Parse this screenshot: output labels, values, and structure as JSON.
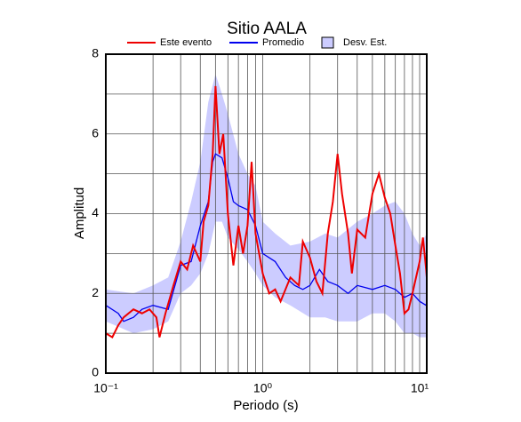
{
  "chart_data": {
    "type": "line",
    "title": "Sitio AALA",
    "x_label": "Periodo (s)",
    "y_label": "Amplitud",
    "xscale": "log",
    "xlim": [
      0.1,
      11.1
    ],
    "ylim": [
      0,
      8
    ],
    "xticks": [
      {
        "value": 0.1,
        "label": "10⁻¹"
      },
      {
        "value": 1,
        "label": "10⁰"
      },
      {
        "value": 10,
        "label": "10¹"
      }
    ],
    "xminorticks": [
      0.2,
      0.3,
      0.4,
      0.5,
      0.6,
      0.7,
      0.8,
      0.9,
      2,
      3,
      4,
      5,
      6,
      7,
      8,
      9
    ],
    "yticks": [
      0,
      2,
      4,
      6,
      8
    ],
    "yminorticks": [
      1,
      3,
      5,
      7
    ],
    "grid": true,
    "series": [
      {
        "name": "Este evento",
        "color": "#ee0000",
        "x": [
          0.1,
          0.11,
          0.12,
          0.13,
          0.15,
          0.17,
          0.19,
          0.21,
          0.22,
          0.24,
          0.27,
          0.3,
          0.33,
          0.36,
          0.4,
          0.42,
          0.45,
          0.48,
          0.5,
          0.53,
          0.56,
          0.6,
          0.65,
          0.7,
          0.75,
          0.8,
          0.85,
          0.9,
          1.0,
          1.1,
          1.2,
          1.3,
          1.5,
          1.7,
          1.8,
          2.0,
          2.2,
          2.4,
          2.6,
          2.8,
          3.0,
          3.2,
          3.5,
          3.7,
          4.0,
          4.5,
          5.0,
          5.5,
          6.0,
          6.5,
          7,
          7.5,
          8,
          8.5,
          9,
          10,
          10.5,
          11,
          11.1
        ],
        "values": [
          1.0,
          0.9,
          1.2,
          1.4,
          1.6,
          1.5,
          1.6,
          1.4,
          0.9,
          1.5,
          2.2,
          2.8,
          2.6,
          3.2,
          2.8,
          3.8,
          4.2,
          5.5,
          7.2,
          5.5,
          6.0,
          4.0,
          2.7,
          3.7,
          3.0,
          3.7,
          5.3,
          3.5,
          2.5,
          2.0,
          2.1,
          1.8,
          2.4,
          2.2,
          3.3,
          2.9,
          2.3,
          2.0,
          3.5,
          4.3,
          5.5,
          4.5,
          3.5,
          2.5,
          3.6,
          3.4,
          4.5,
          5.0,
          4.4,
          4.0,
          3.2,
          2.5,
          1.5,
          1.6,
          2.0,
          2.8,
          3.4,
          2.6,
          2.4
        ]
      },
      {
        "name": "Promedio",
        "color": "#0000ee",
        "x": [
          0.1,
          0.12,
          0.13,
          0.15,
          0.17,
          0.2,
          0.25,
          0.3,
          0.35,
          0.4,
          0.45,
          0.48,
          0.5,
          0.55,
          0.6,
          0.65,
          0.7,
          0.8,
          0.9,
          1.0,
          1.2,
          1.4,
          1.6,
          1.8,
          2.0,
          2.3,
          2.6,
          3.0,
          3.5,
          4.0,
          5.0,
          6.0,
          7,
          8,
          9,
          10,
          11,
          11.1
        ],
        "values": [
          1.7,
          1.5,
          1.3,
          1.4,
          1.6,
          1.7,
          1.6,
          2.7,
          2.8,
          3.7,
          4.3,
          5.3,
          5.5,
          5.4,
          4.9,
          4.3,
          4.2,
          4.1,
          3.7,
          3.0,
          2.8,
          2.4,
          2.2,
          2.1,
          2.2,
          2.6,
          2.3,
          2.2,
          2.0,
          2.2,
          2.1,
          2.2,
          2.1,
          1.9,
          2.0,
          1.8,
          1.7,
          1.8
        ]
      },
      {
        "name": "Desv. Est.",
        "color": "#ccccff",
        "x": [
          0.1,
          0.15,
          0.2,
          0.25,
          0.3,
          0.35,
          0.4,
          0.45,
          0.5,
          0.55,
          0.6,
          0.7,
          0.8,
          0.9,
          1.0,
          1.2,
          1.5,
          2.0,
          2.5,
          3.0,
          4.0,
          5.0,
          6.0,
          7,
          8,
          9,
          10,
          11.1
        ],
        "upper": [
          2.1,
          2.0,
          2.2,
          2.4,
          3.3,
          4.3,
          5.3,
          6.8,
          7.5,
          7.0,
          6.5,
          5.5,
          5.0,
          4.7,
          3.8,
          3.5,
          3.2,
          3.3,
          3.5,
          3.4,
          3.8,
          4.0,
          4.2,
          4.3,
          4.0,
          3.5,
          3.2,
          3.5
        ],
        "lower": [
          1.3,
          1.0,
          1.1,
          1.3,
          2.0,
          2.2,
          2.5,
          3.0,
          3.8,
          3.8,
          3.4,
          3.1,
          2.8,
          2.5,
          2.2,
          1.9,
          1.7,
          1.4,
          1.4,
          1.3,
          1.3,
          1.5,
          1.5,
          1.3,
          1.0,
          1.0,
          0.9,
          0.9
        ]
      }
    ]
  }
}
